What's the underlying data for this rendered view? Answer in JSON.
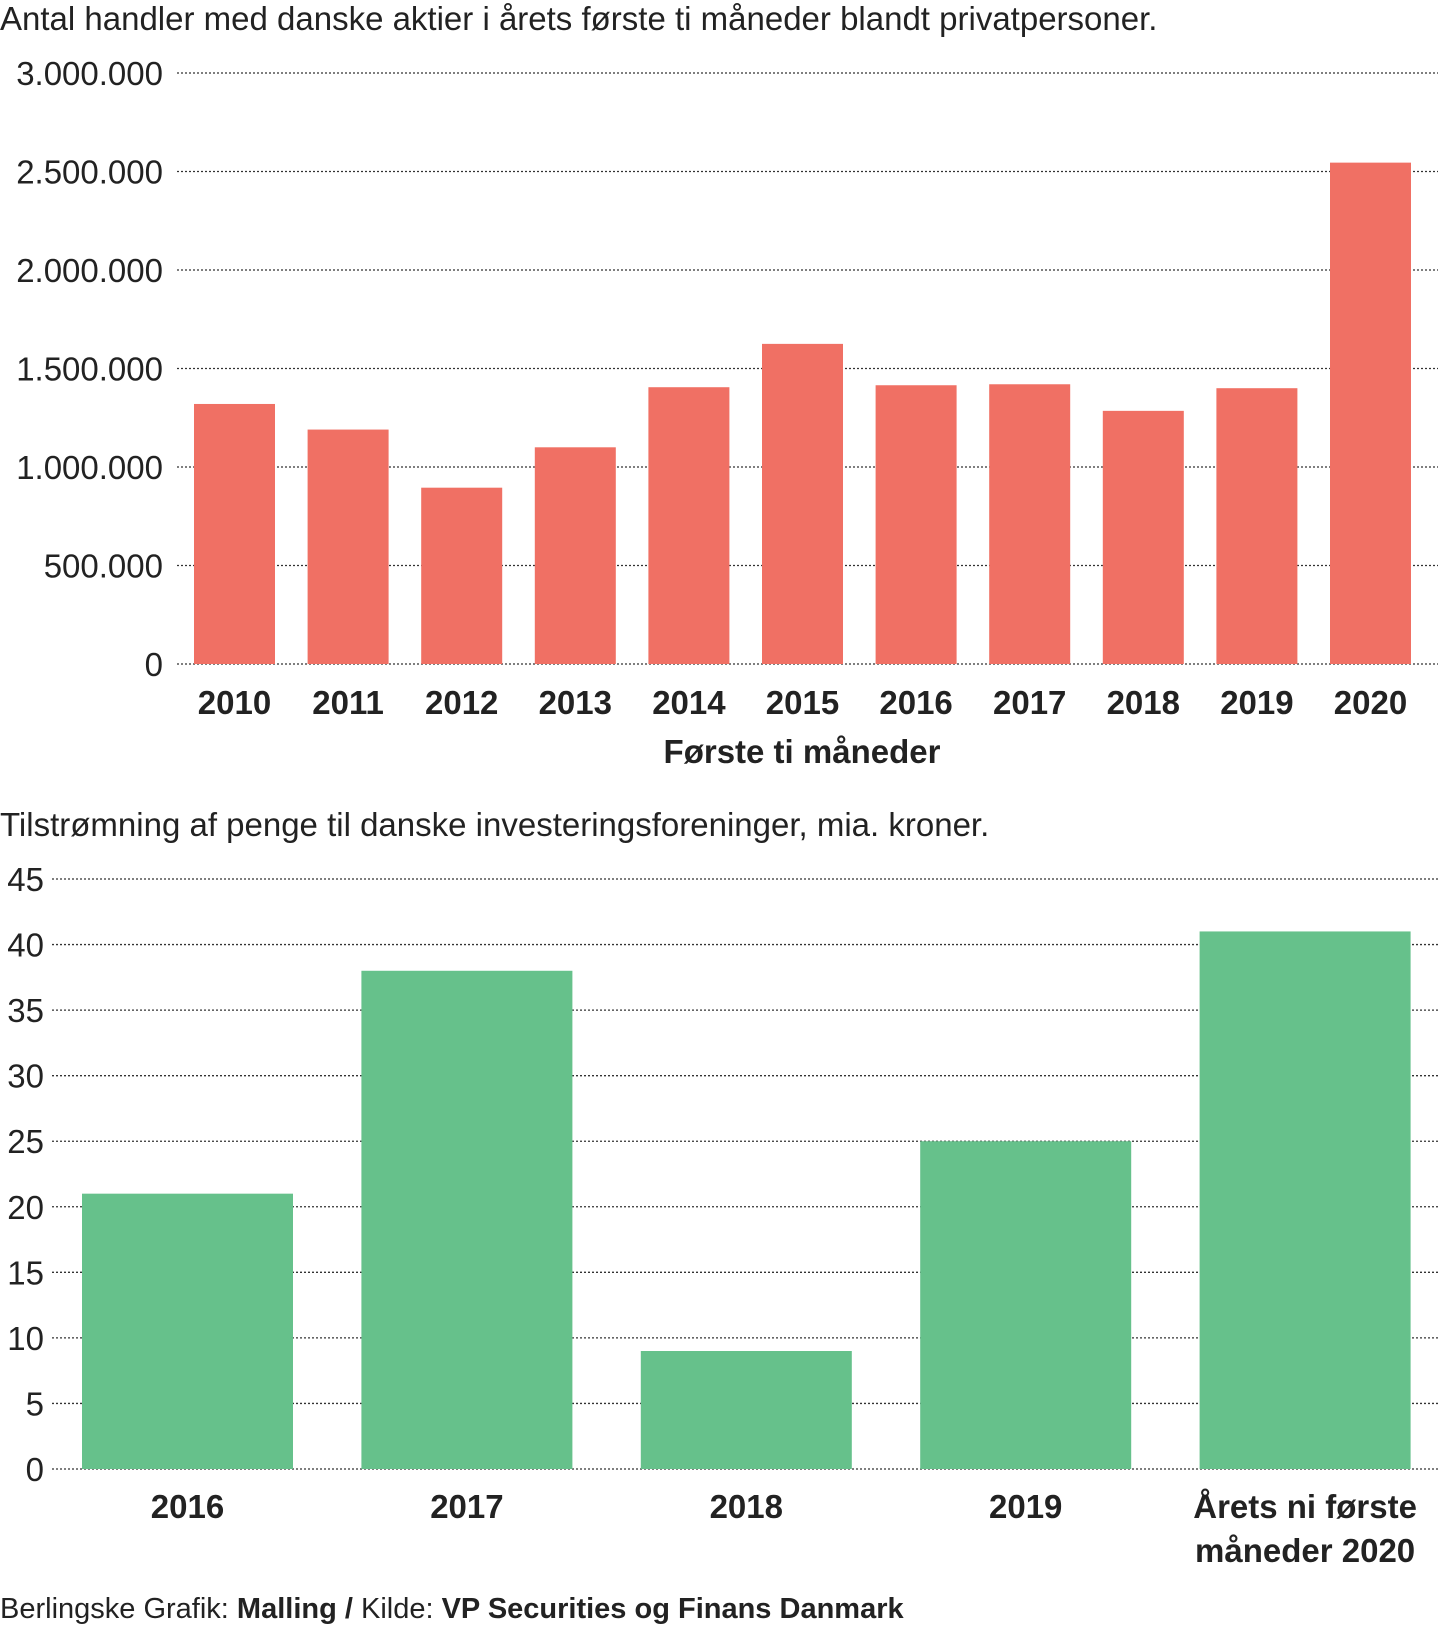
{
  "chart_data": [
    {
      "type": "bar",
      "title": "Antal handler med danske aktier i årets første ti måneder blandt privatpersoner.",
      "xlabel": "Første ti måneder",
      "ylabel": "",
      "ylim": [
        0,
        3000000
      ],
      "grid": true,
      "color": "#f07064",
      "yticks": [
        0,
        500000,
        1000000,
        1500000,
        2000000,
        2500000,
        3000000
      ],
      "ytick_labels": [
        "0",
        "500.000",
        "1.000.000",
        "1.500.000",
        "2.000.000",
        "2.500.000",
        "3.000.000"
      ],
      "categories": [
        "2010",
        "2011",
        "2012",
        "2013",
        "2014",
        "2015",
        "2016",
        "2017",
        "2018",
        "2019",
        "2020"
      ],
      "values": [
        1320000,
        1190000,
        895000,
        1100000,
        1405000,
        1625000,
        1415000,
        1420000,
        1285000,
        1400000,
        2545000
      ]
    },
    {
      "type": "bar",
      "title": "Tilstrømning af penge til danske investeringsforeninger, mia. kroner.",
      "xlabel": "",
      "ylabel": "",
      "ylim": [
        0,
        45
      ],
      "grid": true,
      "color": "#66c18b",
      "yticks": [
        0,
        5,
        10,
        15,
        20,
        25,
        30,
        35,
        40,
        45
      ],
      "ytick_labels": [
        "0",
        "5",
        "10",
        "15",
        "20",
        "25",
        "30",
        "35",
        "40",
        "45"
      ],
      "categories": [
        "2016",
        "2017",
        "2018",
        "2019",
        "Årets ni første måneder 2020"
      ],
      "category_lines": [
        [
          "2016"
        ],
        [
          "2017"
        ],
        [
          "2018"
        ],
        [
          "2019"
        ],
        [
          "Årets ni første",
          "måneder 2020"
        ]
      ],
      "values": [
        21,
        38,
        9,
        25,
        41
      ]
    }
  ],
  "footer": {
    "prefix": "Berlingske Grafik: ",
    "author": "Malling",
    "sep": " / ",
    "source_label": "Kilde: ",
    "source": "VP Securities og Finans Danmark"
  }
}
